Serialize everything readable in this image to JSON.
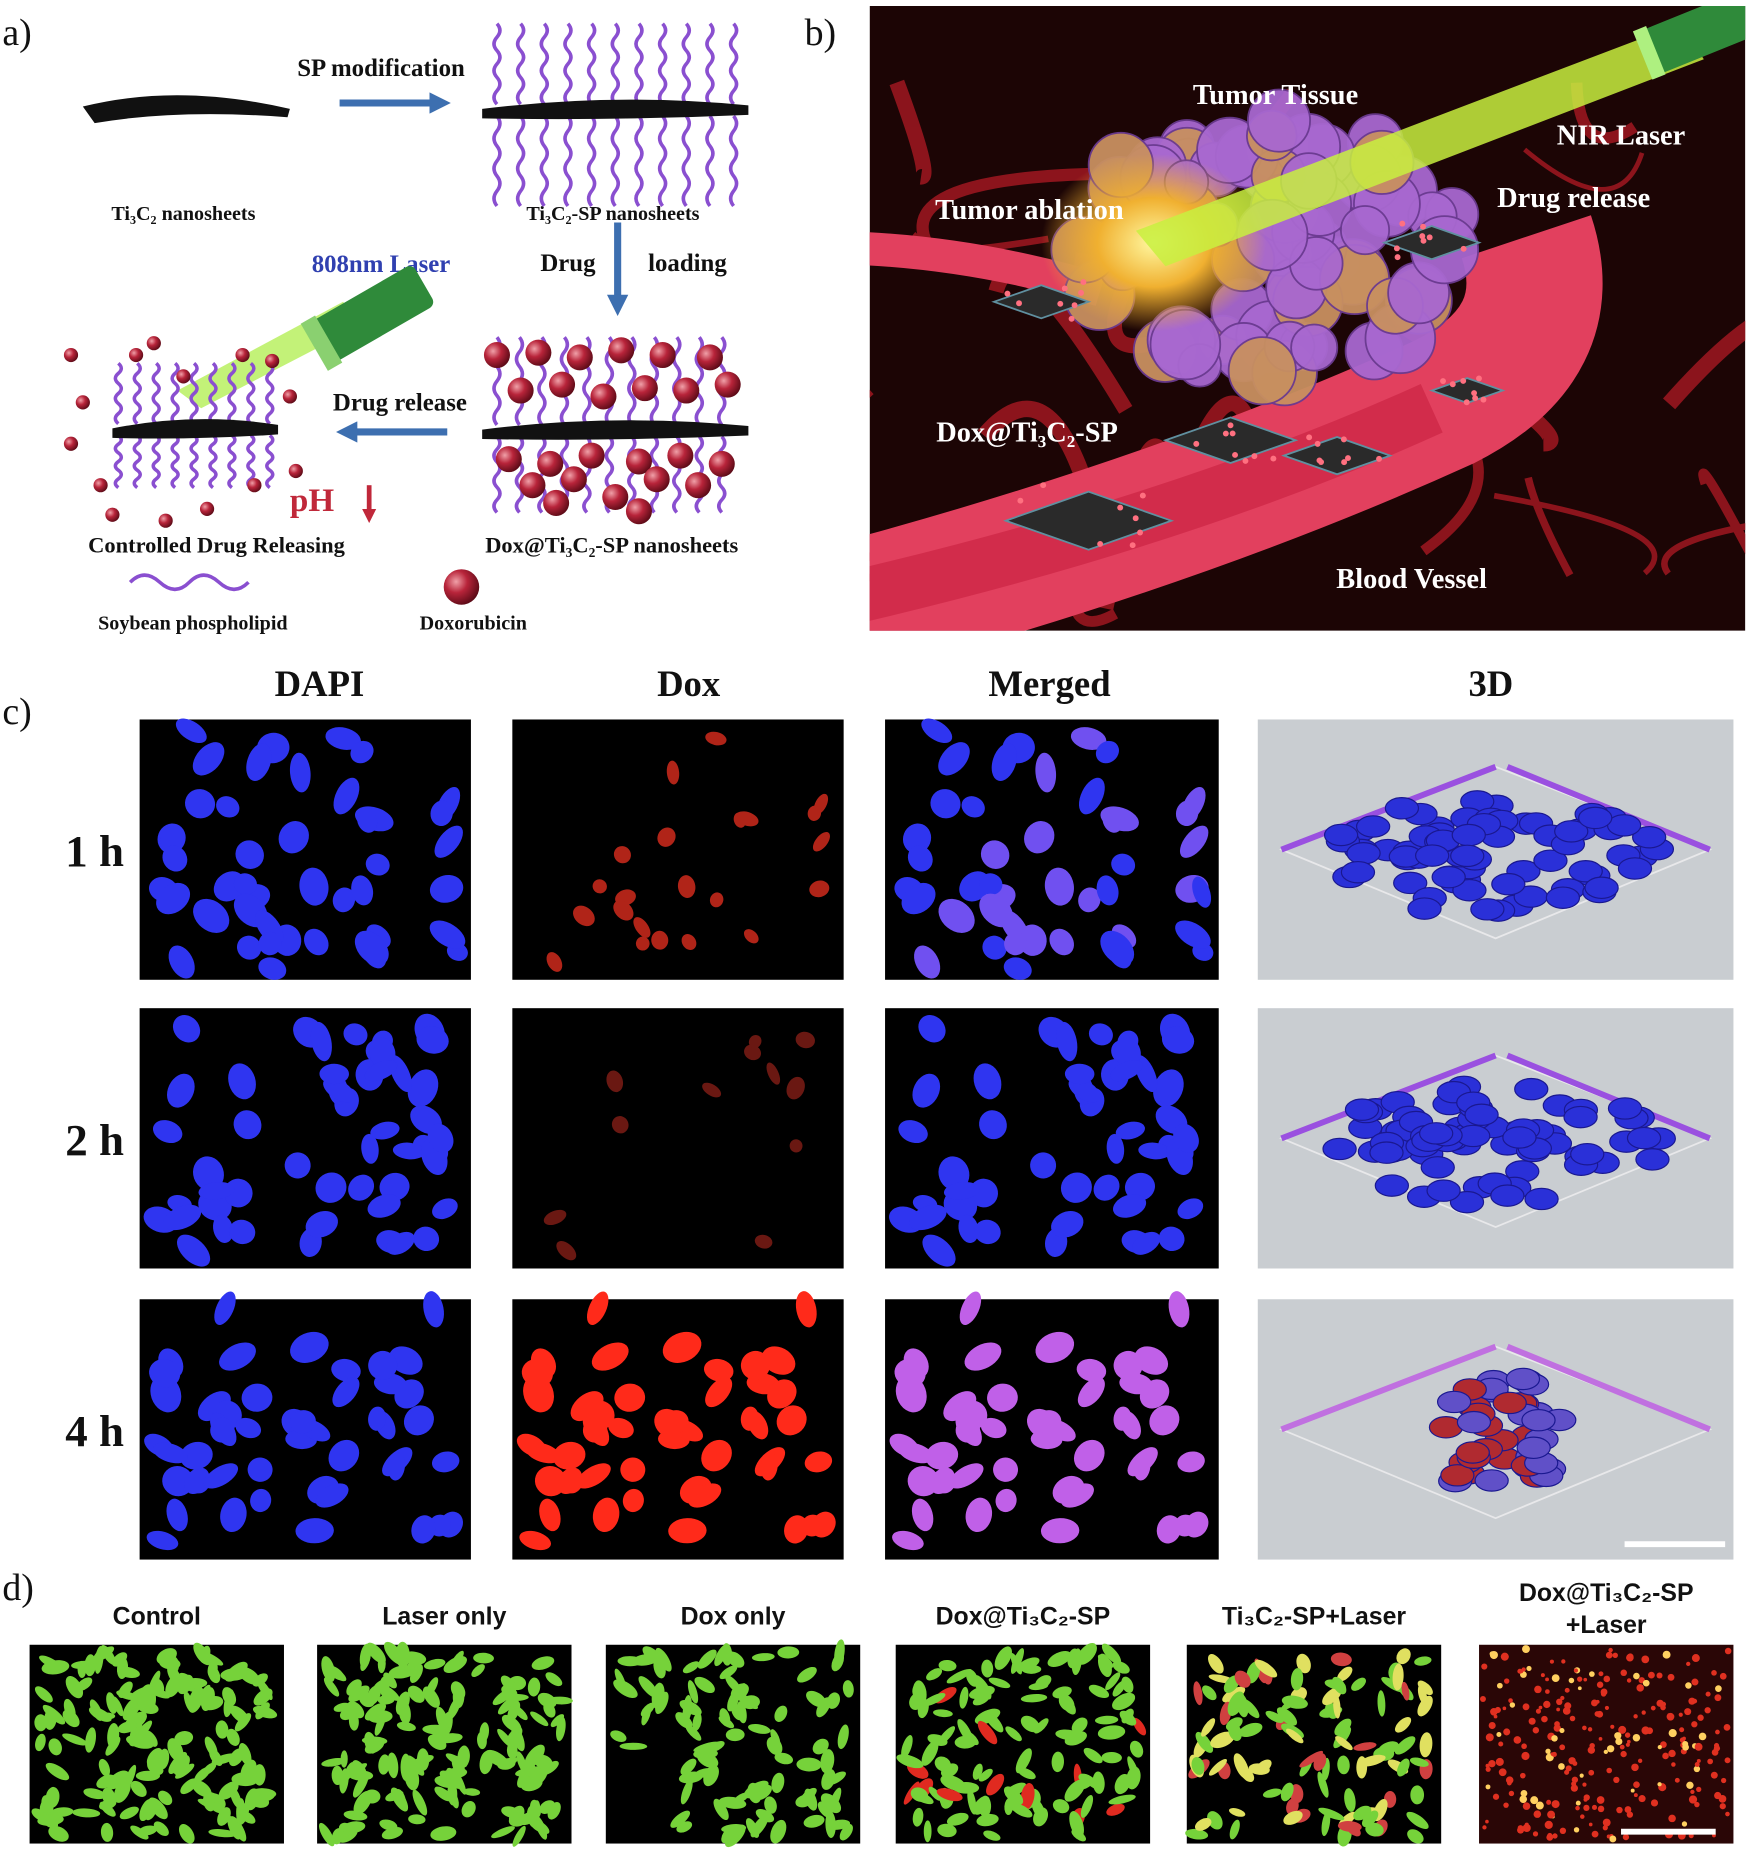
{
  "panel_a": {
    "label": "a)",
    "sp_modification": "SP modification",
    "ti3c2_nanosheets": "Ti₃C₂ nanosheets",
    "ti3c2_sp_nanosheets": "Ti₃C₂-SP nanosheets",
    "laser": "808nm Laser",
    "drug": "Drug",
    "loading": "loading",
    "drug_release": "Drug release",
    "ph": "pH",
    "controlled_release": "Controlled Drug Releasing",
    "dox_nanosheets": "Dox@Ti₃C₂-SP nanosheets",
    "legend_lipid": "Soybean phospholipid",
    "legend_dox": "Doxorubicin"
  },
  "panel_b": {
    "label": "b)",
    "tumor_tissue": "Tumor Tissue",
    "nir_laser": "NIR Laser",
    "tumor_ablation": "Tumor ablation",
    "drug_release": "Drug release",
    "dox_ti3c2_sp": "Dox@Ti₃C₂-SP",
    "blood_vessel": "Blood Vessel"
  },
  "panel_c": {
    "label": "c)",
    "columns": [
      "DAPI",
      "Dox",
      "Merged",
      "3D"
    ],
    "rows": [
      "1 h",
      "2 h",
      "4 h"
    ]
  },
  "panel_d": {
    "label": "d)",
    "groups": [
      [
        "Control"
      ],
      [
        "Laser only"
      ],
      [
        "Dox only"
      ],
      [
        "Dox@Ti₃C₂-SP"
      ],
      [
        "Ti₃C₂-SP+Laser"
      ],
      [
        "Dox@Ti₃C₂-SP",
        "+Laser"
      ]
    ]
  }
}
